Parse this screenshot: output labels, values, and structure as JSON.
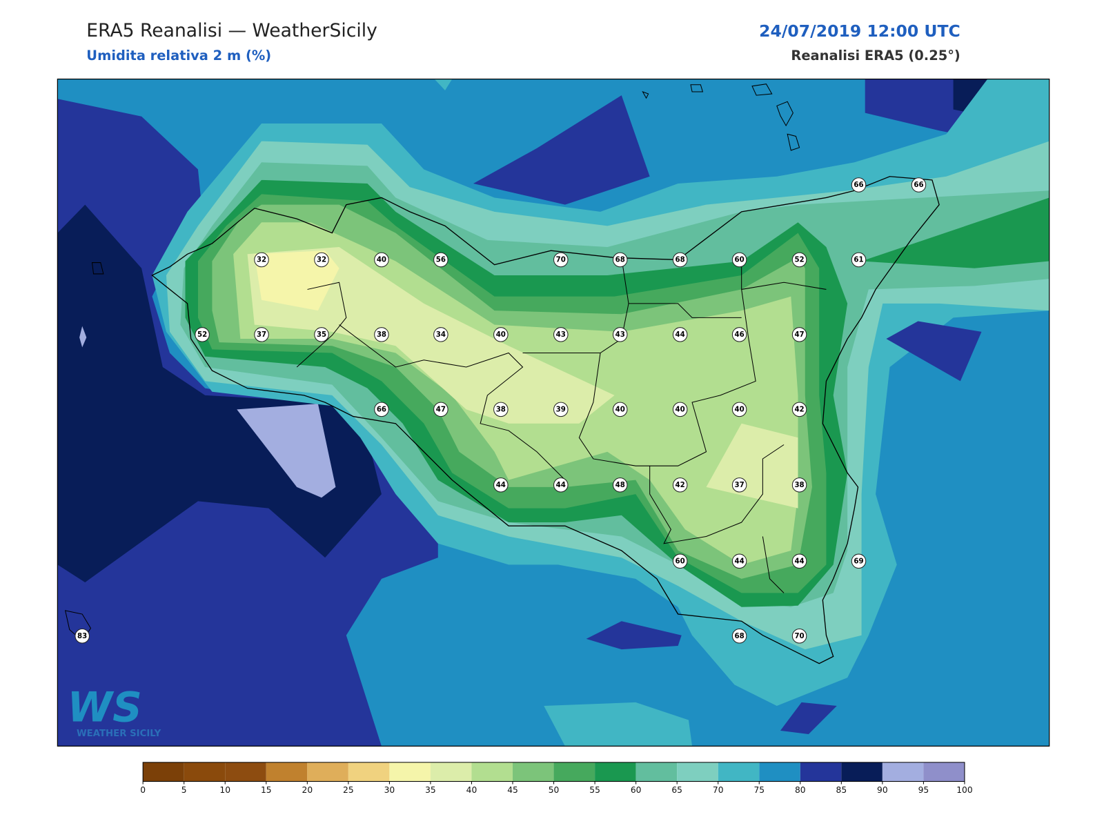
{
  "header": {
    "title": "ERA5 Reanalisi — WeatherSicily",
    "subtitle": "Umidita relativa 2 m (%)",
    "date": "24/07/2019 12:00 UTC",
    "source": "Reanalisi ERA5 (0.25°)"
  },
  "stations": {
    "values": [
      66,
      66,
      32,
      32,
      40,
      56,
      70,
      68,
      68,
      60,
      52,
      61,
      52,
      37,
      35,
      38,
      34,
      40,
      43,
      43,
      44,
      46,
      47,
      66,
      47,
      38,
      39,
      40,
      40,
      40,
      42,
      44,
      44,
      48,
      42,
      37,
      38,
      60,
      44,
      44,
      69,
      68,
      70,
      83
    ]
  },
  "colorbar": {
    "ticks": [
      0,
      5,
      10,
      15,
      20,
      25,
      30,
      35,
      40,
      45,
      50,
      55,
      60,
      65,
      70,
      75,
      80,
      85,
      90,
      95,
      100
    ],
    "colors": [
      "#7b4008",
      "#8a4a0c",
      "#8d4c10",
      "#c0812e",
      "#dfae5a",
      "#f0d27f",
      "#f5f5aa",
      "#dcedaa",
      "#b2de90",
      "#7cc47a",
      "#46a95d",
      "#1a9850",
      "#62be9e",
      "#7ecfbf",
      "#41b6c4",
      "#1f8fc2",
      "#24359a",
      "#081d58",
      "#a3aee0",
      "#8f8fca"
    ]
  },
  "logo": {
    "mark": "WS",
    "text": "WEATHER SICILY"
  }
}
